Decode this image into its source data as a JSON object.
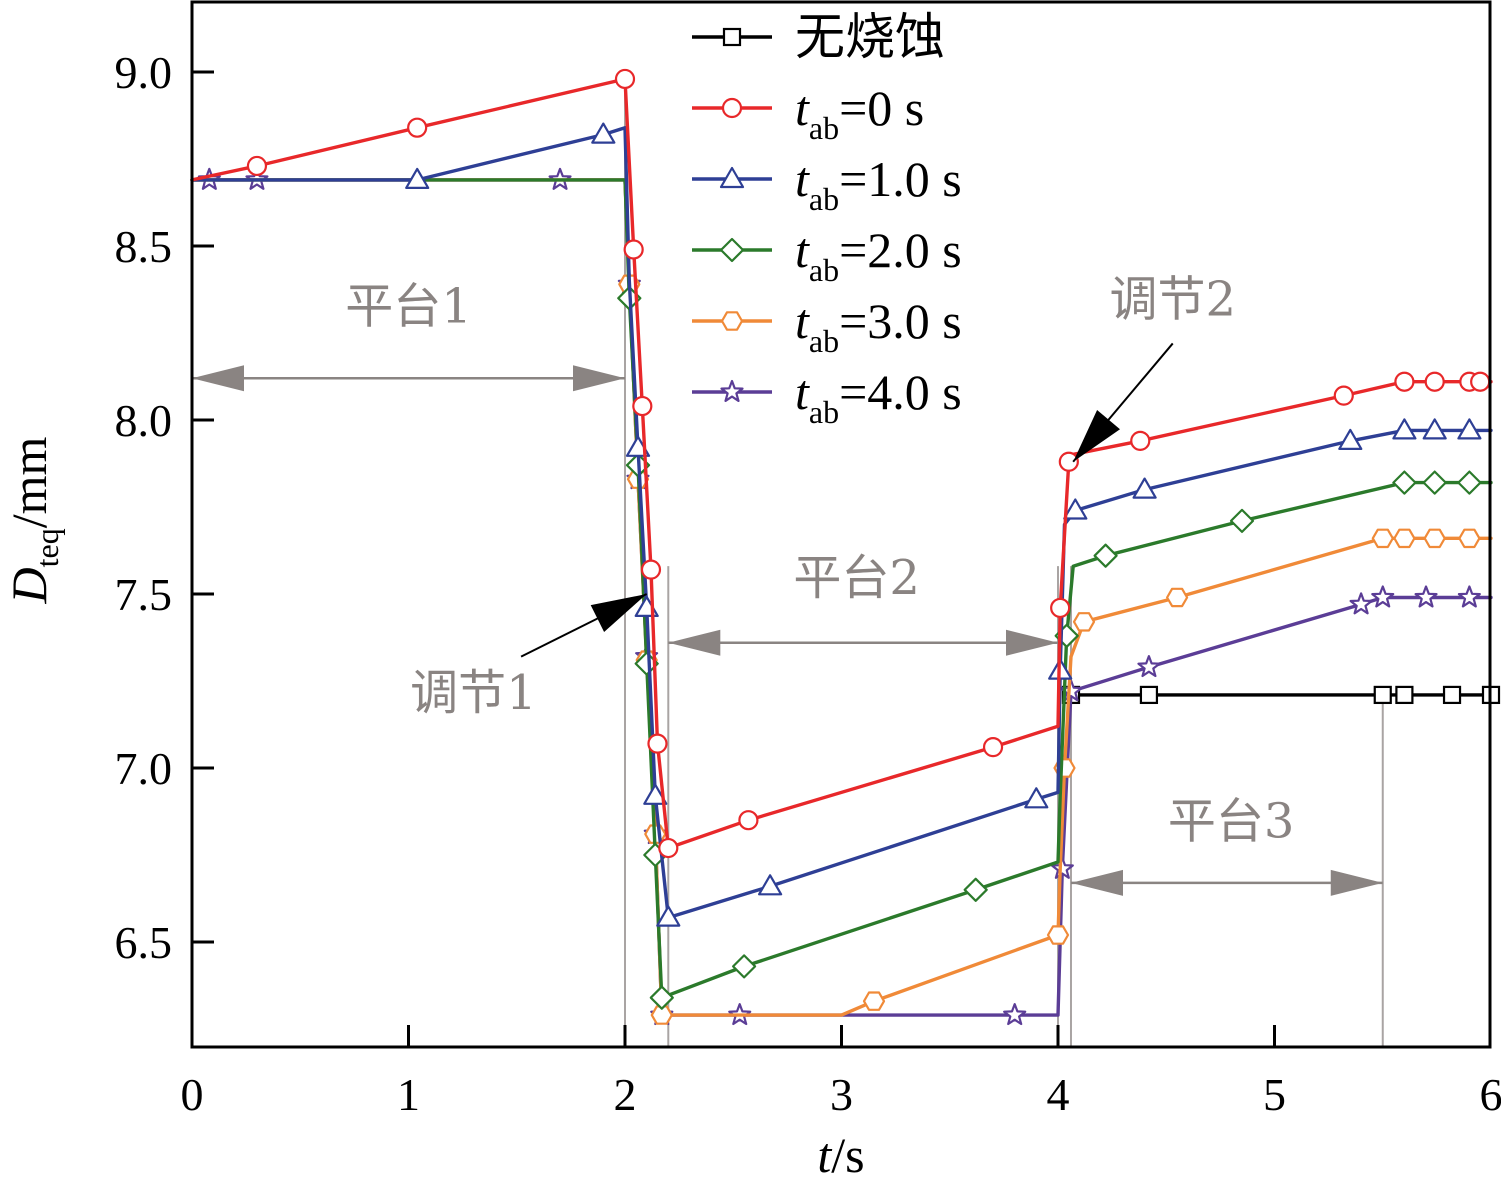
{
  "chart_data": {
    "type": "line",
    "xlabel": "t/s",
    "xlabel_parts": {
      "var": "t",
      "unit": "/s"
    },
    "ylabel_parts": {
      "var": "D",
      "sub": "teq",
      "unit": "/mm"
    },
    "xlim": [
      0,
      6
    ],
    "ylim": [
      6.2,
      9.2
    ],
    "x_ticks": [
      0,
      1,
      2,
      3,
      4,
      5,
      6
    ],
    "x_tick_labels": [
      "0",
      "1",
      "2",
      "3",
      "4",
      "5",
      "6"
    ],
    "y_ticks": [
      6.5,
      7.0,
      7.5,
      8.0,
      8.5,
      9.0
    ],
    "y_tick_labels": [
      "6.5",
      "7.0",
      "7.5",
      "8.0",
      "8.5",
      "9.0"
    ],
    "grid": false,
    "legend_position": "top-center",
    "series": [
      {
        "name": "无烧蚀",
        "legend_var": "",
        "legend_sub": "",
        "legend_rest": "无烧蚀",
        "color": "#000000",
        "marker": "square",
        "x": [
          4.06,
          4.42,
          5.5,
          5.6,
          5.82,
          6.0
        ],
        "y": [
          7.21,
          7.21,
          7.21,
          7.21,
          7.21,
          7.21
        ],
        "markers": [
          4.06,
          4.42,
          5.5,
          5.6,
          5.82,
          6.0
        ]
      },
      {
        "name": "t_ab=0 s",
        "legend_var": "t",
        "legend_sub": "ab",
        "legend_rest": "=0 s",
        "color": "#e8282a",
        "marker": "circle",
        "x": [
          0.0,
          0.3,
          1.04,
          2.0,
          2.04,
          2.08,
          2.12,
          2.15,
          2.2,
          2.57,
          3.7,
          4.0,
          4.01,
          4.05,
          4.06,
          4.38,
          5.32,
          5.6,
          5.74,
          5.9,
          5.95,
          6.0
        ],
        "y": [
          8.69,
          8.73,
          8.84,
          8.98,
          8.49,
          8.04,
          7.57,
          7.07,
          6.77,
          6.85,
          7.06,
          7.12,
          7.46,
          7.88,
          7.9,
          7.94,
          8.07,
          8.11,
          8.11,
          8.11,
          8.11,
          8.11
        ],
        "markers": [
          0.3,
          1.04,
          2.0,
          2.04,
          2.08,
          2.12,
          2.15,
          2.2,
          2.57,
          3.7,
          4.01,
          4.05,
          4.38,
          5.32,
          5.6,
          5.74,
          5.9,
          5.95
        ]
      },
      {
        "name": "t_ab=1.0 s",
        "legend_var": "t",
        "legend_sub": "ab",
        "legend_rest": "=1.0 s",
        "color": "#2e3f95",
        "marker": "triangle",
        "x": [
          0.0,
          1.04,
          1.9,
          2.0,
          2.02,
          2.06,
          2.1,
          2.14,
          2.2,
          2.67,
          3.9,
          4.0,
          4.01,
          4.03,
          4.08,
          4.4,
          5.35,
          5.6,
          5.74,
          5.9,
          6.0
        ],
        "y": [
          8.69,
          8.69,
          8.82,
          8.84,
          8.4,
          7.92,
          7.46,
          6.92,
          6.57,
          6.66,
          6.91,
          6.93,
          7.28,
          7.7,
          7.74,
          7.8,
          7.94,
          7.97,
          7.97,
          7.97,
          7.97
        ],
        "markers": [
          1.04,
          1.9,
          2.06,
          2.1,
          2.14,
          2.2,
          2.67,
          3.9,
          4.01,
          4.08,
          4.4,
          5.35,
          5.6,
          5.74,
          5.9
        ]
      },
      {
        "name": "t_ab=2.0 s",
        "legend_var": "t",
        "legend_sub": "ab",
        "legend_rest": "=2.0 s",
        "color": "#2b7a2b",
        "marker": "diamond",
        "x": [
          0.0,
          2.0,
          2.02,
          2.06,
          2.1,
          2.14,
          2.17,
          2.55,
          3.62,
          4.0,
          4.01,
          4.04,
          4.07,
          4.22,
          4.85,
          5.6,
          5.74,
          5.9,
          6.0
        ],
        "y": [
          8.69,
          8.69,
          8.35,
          7.87,
          7.3,
          6.75,
          6.34,
          6.43,
          6.65,
          6.73,
          6.92,
          7.38,
          7.58,
          7.61,
          7.71,
          7.82,
          7.82,
          7.82,
          7.82
        ],
        "markers": [
          2.02,
          2.06,
          2.1,
          2.14,
          2.17,
          2.55,
          3.62,
          4.04,
          4.22,
          4.85,
          5.6,
          5.74,
          5.9
        ]
      },
      {
        "name": "t_ab=3.0 s",
        "legend_var": "t",
        "legend_sub": "ab",
        "legend_rest": "=3.0 s",
        "color": "#f08a38",
        "marker": "hexagon",
        "x": [
          0.0,
          2.0,
          2.02,
          2.06,
          2.1,
          2.14,
          2.17,
          3.0,
          3.15,
          4.0,
          4.01,
          4.03,
          4.06,
          4.12,
          4.55,
          5.5,
          5.6,
          5.74,
          5.9,
          6.0
        ],
        "y": [
          8.69,
          8.69,
          8.39,
          7.83,
          7.31,
          6.81,
          6.29,
          6.29,
          6.33,
          6.52,
          6.71,
          7.0,
          7.32,
          7.42,
          7.49,
          7.66,
          7.66,
          7.66,
          7.66,
          7.66
        ],
        "markers": [
          2.02,
          2.06,
          2.1,
          2.14,
          2.17,
          3.15,
          4.0,
          4.03,
          4.12,
          4.55,
          5.5,
          5.6,
          5.74,
          5.9
        ]
      },
      {
        "name": "t_ab=4.0 s",
        "legend_var": "t",
        "legend_sub": "ab",
        "legend_rest": "=4.0 s",
        "color": "#5b3d96",
        "marker": "star",
        "x": [
          0.0,
          0.08,
          0.3,
          1.7,
          2.0,
          2.02,
          2.06,
          2.1,
          2.14,
          2.17,
          2.53,
          3.8,
          4.0,
          4.02,
          4.06,
          4.42,
          5.4,
          5.5,
          5.7,
          5.9,
          6.0
        ],
        "y": [
          8.69,
          8.69,
          8.69,
          8.69,
          8.69,
          8.39,
          7.83,
          7.32,
          6.81,
          6.29,
          6.29,
          6.29,
          6.29,
          6.71,
          7.22,
          7.29,
          7.47,
          7.49,
          7.49,
          7.49,
          7.49
        ],
        "markers": [
          0.08,
          0.3,
          1.7,
          2.02,
          2.06,
          2.1,
          2.14,
          2.17,
          2.53,
          3.8,
          4.02,
          4.06,
          4.42,
          5.4,
          5.5,
          5.7,
          5.9
        ]
      }
    ],
    "annotations": [
      {
        "text": "平台1",
        "x": 1.0,
        "y": 8.28,
        "arrow_from": [
          0.0,
          8.12
        ],
        "arrow_to": [
          2.0,
          8.12
        ]
      },
      {
        "text": "平台2",
        "x": 3.07,
        "y": 7.5,
        "arrow_from": [
          2.2,
          7.36
        ],
        "arrow_to": [
          4.0,
          7.36
        ]
      },
      {
        "text": "平台3",
        "x": 4.8,
        "y": 6.8,
        "arrow_from": [
          4.06,
          6.67
        ],
        "arrow_to": [
          5.5,
          6.67
        ]
      },
      {
        "text": "调节1",
        "x": 1.3,
        "y": 7.17,
        "arrow_from": [
          1.52,
          7.32
        ],
        "arrow_to": [
          2.1,
          7.5
        ]
      },
      {
        "text": "调节2",
        "x": 4.53,
        "y": 8.3,
        "arrow_from": [
          4.53,
          8.22
        ],
        "arrow_to": [
          4.07,
          7.88
        ]
      }
    ],
    "reference_lines_x": [
      {
        "x": 2.0,
        "y_top": 8.98
      },
      {
        "x": 2.2,
        "y_top": 7.58
      },
      {
        "x": 4.0,
        "y_top": 7.58
      },
      {
        "x": 4.06,
        "y_top": 7.58
      },
      {
        "x": 5.5,
        "y_top": 7.21
      }
    ]
  }
}
